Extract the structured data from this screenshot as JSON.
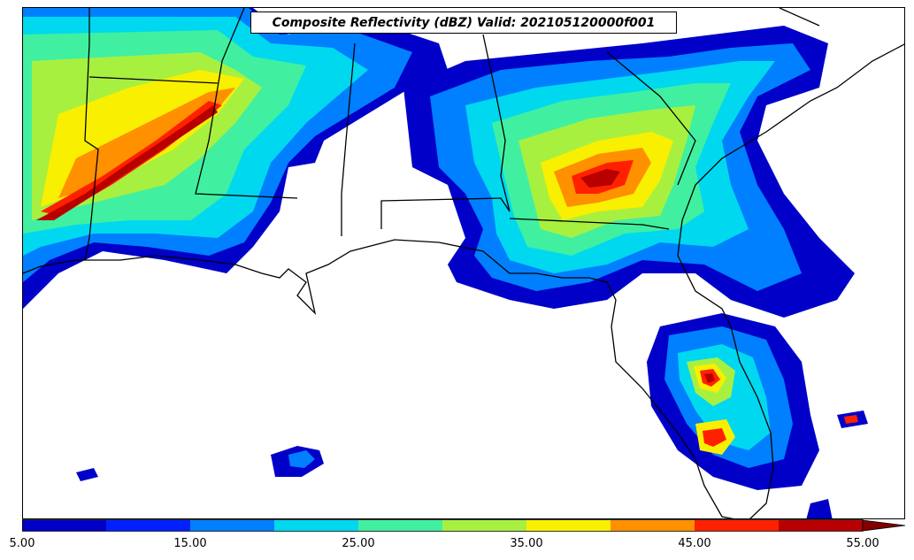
{
  "title": "Composite Reflectivity (dBZ) Valid: 202105120000f001",
  "colorbar": {
    "unit": "dBZ",
    "levels": [
      5,
      10,
      15,
      20,
      25,
      30,
      35,
      40,
      45,
      50,
      55
    ],
    "colors": [
      "#0000c8",
      "#0020ff",
      "#0080ff",
      "#00d8f0",
      "#40f0a0",
      "#a8f040",
      "#f8f000",
      "#ff9000",
      "#ff2000",
      "#b80000"
    ],
    "extend_color": "#800000",
    "tick_labels": [
      "5.00",
      "15.00",
      "25.00",
      "35.00",
      "45.00",
      "55.00"
    ]
  }
}
